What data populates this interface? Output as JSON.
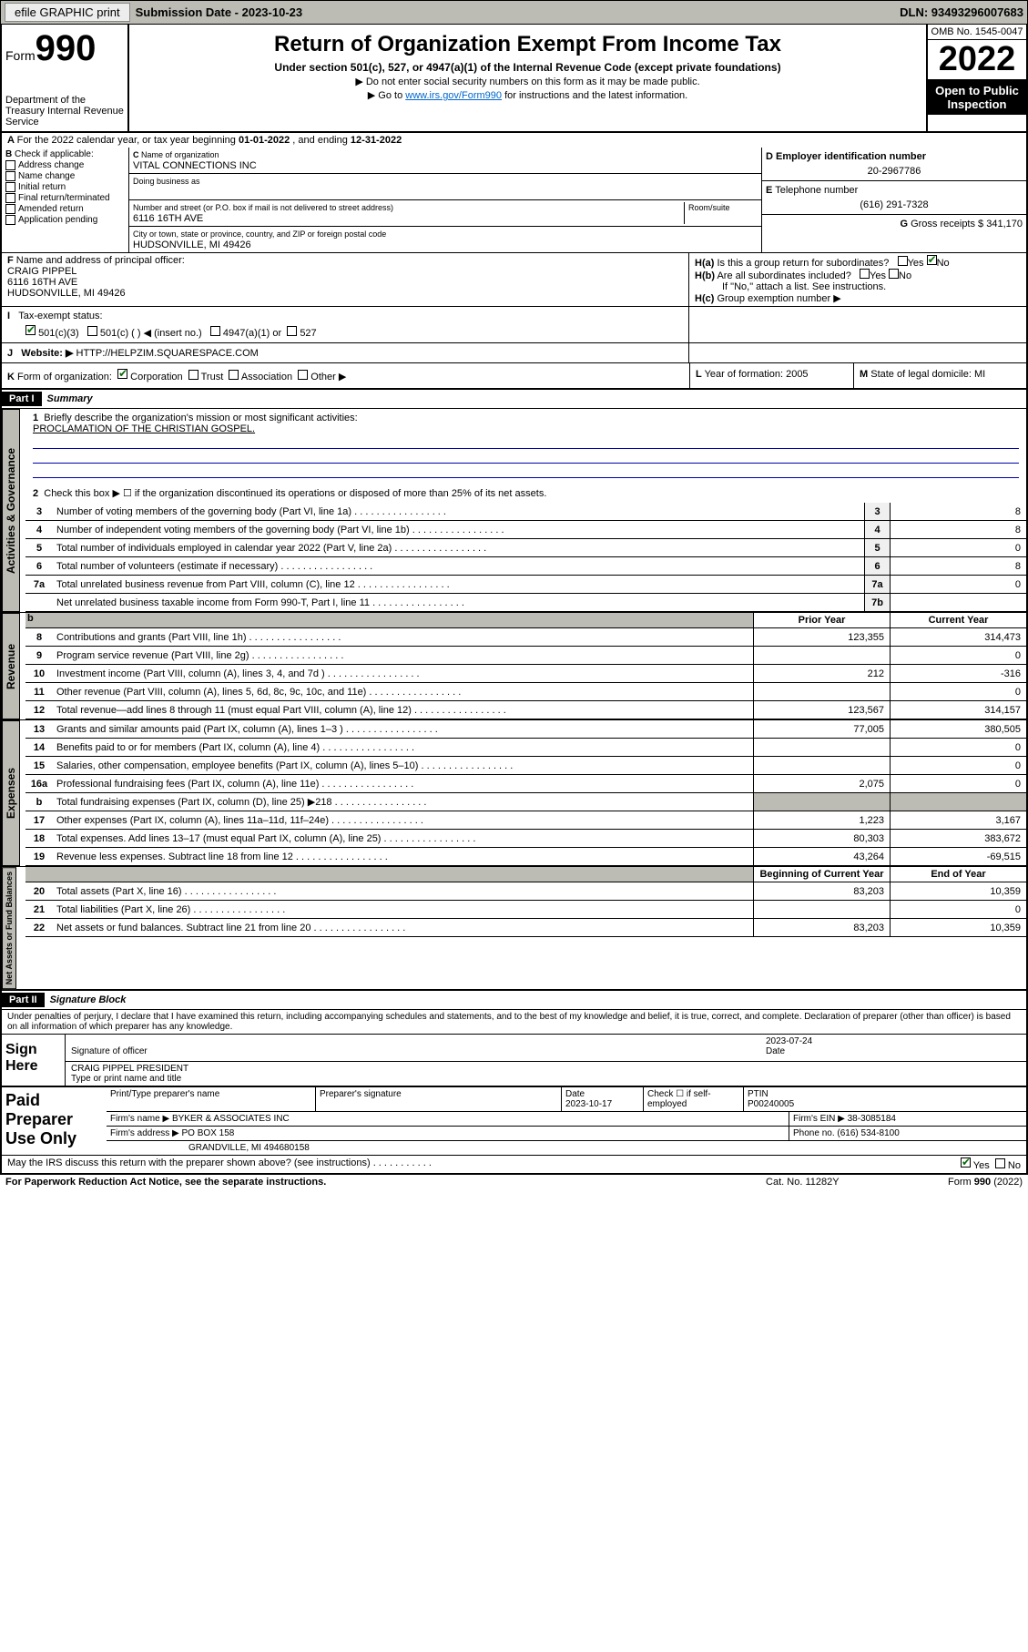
{
  "topbar": {
    "efile": "efile GRAPHIC print",
    "sub_label": "Submission Date - 2023-10-23",
    "dln": "DLN: 93493296007683"
  },
  "header": {
    "form_prefix": "Form",
    "form_num": "990",
    "dept": "Department of the Treasury\nInternal Revenue Service",
    "title": "Return of Organization Exempt From Income Tax",
    "sub": "Under section 501(c), 527, or 4947(a)(1) of the Internal Revenue Code (except private foundations)",
    "note1": "▶ Do not enter social security numbers on this form as it may be made public.",
    "note2_pre": "▶ Go to ",
    "note2_link": "www.irs.gov/Form990",
    "note2_post": " for instructions and the latest information.",
    "omb": "OMB No. 1545-0047",
    "year": "2022",
    "open": "Open to Public Inspection"
  },
  "A": {
    "text_pre": "For the 2022 calendar year, or tax year beginning ",
    "begin": "01-01-2022",
    "mid": " , and ending ",
    "end": "12-31-2022"
  },
  "B": {
    "title": "Check if applicable:",
    "opts": [
      "Address change",
      "Name change",
      "Initial return",
      "Final return/terminated",
      "Amended return",
      "Application pending"
    ]
  },
  "C": {
    "name_label": "Name of organization",
    "name": "VITAL CONNECTIONS INC",
    "dba_label": "Doing business as",
    "dba": "",
    "street_label": "Number and street (or P.O. box if mail is not delivered to street address)",
    "street": "6116 16TH AVE",
    "room_label": "Room/suite",
    "city_label": "City or town, state or province, country, and ZIP or foreign postal code",
    "city": "HUDSONVILLE, MI  49426"
  },
  "D": {
    "label": "Employer identification number",
    "val": "20-2967786"
  },
  "E": {
    "label": "Telephone number",
    "val": "(616) 291-7328"
  },
  "G": {
    "label": "Gross receipts $",
    "val": "341,170"
  },
  "F": {
    "label": "Name and address of principal officer:",
    "name": "CRAIG PIPPEL",
    "addr1": "6116 16TH AVE",
    "addr2": "HUDSONVILLE, MI  49426"
  },
  "H": {
    "a": "Is this a group return for subordinates?",
    "b": "Are all subordinates included?",
    "note": "If \"No,\" attach a list. See instructions.",
    "c": "Group exemption number ▶"
  },
  "I": {
    "label": "Tax-exempt status:",
    "o1": "501(c)(3)",
    "o2": "501(c) (   ) ◀ (insert no.)",
    "o3": "4947(a)(1) or",
    "o4": "527"
  },
  "J": {
    "label": "Website: ▶",
    "val": "HTTP://HELPZIM.SQUARESPACE.COM"
  },
  "K": {
    "label": "Form of organization:",
    "opts": [
      "Corporation",
      "Trust",
      "Association",
      "Other ▶"
    ]
  },
  "L": {
    "label": "Year of formation:",
    "val": "2005"
  },
  "M": {
    "label": "State of legal domicile:",
    "val": "MI"
  },
  "part1": {
    "hdr": "Part I",
    "title": "Summary",
    "l1": "Briefly describe the organization's mission or most significant activities:",
    "mission": "PROCLAMATION OF THE CHRISTIAN GOSPEL.",
    "l2": "Check this box ▶ ☐  if the organization discontinued its operations or disposed of more than 25% of its net assets.",
    "lines_gov": [
      {
        "n": "3",
        "t": "Number of voting members of the governing body (Part VI, line 1a)",
        "b": "3",
        "v": "8"
      },
      {
        "n": "4",
        "t": "Number of independent voting members of the governing body (Part VI, line 1b)",
        "b": "4",
        "v": "8"
      },
      {
        "n": "5",
        "t": "Total number of individuals employed in calendar year 2022 (Part V, line 2a)",
        "b": "5",
        "v": "0"
      },
      {
        "n": "6",
        "t": "Total number of volunteers (estimate if necessary)",
        "b": "6",
        "v": "8"
      },
      {
        "n": "7a",
        "t": "Total unrelated business revenue from Part VIII, column (C), line 12",
        "b": "7a",
        "v": "0"
      },
      {
        "n": "",
        "t": "Net unrelated business taxable income from Form 990-T, Part I, line 11",
        "b": "7b",
        "v": ""
      }
    ],
    "col_prior": "Prior Year",
    "col_curr": "Current Year",
    "rev": [
      {
        "n": "8",
        "t": "Contributions and grants (Part VIII, line 1h)",
        "p": "123,355",
        "c": "314,473"
      },
      {
        "n": "9",
        "t": "Program service revenue (Part VIII, line 2g)",
        "p": "",
        "c": "0"
      },
      {
        "n": "10",
        "t": "Investment income (Part VIII, column (A), lines 3, 4, and 7d )",
        "p": "212",
        "c": "-316"
      },
      {
        "n": "11",
        "t": "Other revenue (Part VIII, column (A), lines 5, 6d, 8c, 9c, 10c, and 11e)",
        "p": "",
        "c": "0"
      },
      {
        "n": "12",
        "t": "Total revenue—add lines 8 through 11 (must equal Part VIII, column (A), line 12)",
        "p": "123,567",
        "c": "314,157"
      }
    ],
    "exp": [
      {
        "n": "13",
        "t": "Grants and similar amounts paid (Part IX, column (A), lines 1–3 )",
        "p": "77,005",
        "c": "380,505"
      },
      {
        "n": "14",
        "t": "Benefits paid to or for members (Part IX, column (A), line 4)",
        "p": "",
        "c": "0"
      },
      {
        "n": "15",
        "t": "Salaries, other compensation, employee benefits (Part IX, column (A), lines 5–10)",
        "p": "",
        "c": "0"
      },
      {
        "n": "16a",
        "t": "Professional fundraising fees (Part IX, column (A), line 11e)",
        "p": "2,075",
        "c": "0"
      },
      {
        "n": "b",
        "t": "Total fundraising expenses (Part IX, column (D), line 25) ▶218",
        "p": "SH",
        "c": "SH"
      },
      {
        "n": "17",
        "t": "Other expenses (Part IX, column (A), lines 11a–11d, 11f–24e)",
        "p": "1,223",
        "c": "3,167"
      },
      {
        "n": "18",
        "t": "Total expenses. Add lines 13–17 (must equal Part IX, column (A), line 25)",
        "p": "80,303",
        "c": "383,672"
      },
      {
        "n": "19",
        "t": "Revenue less expenses. Subtract line 18 from line 12",
        "p": "43,264",
        "c": "-69,515"
      }
    ],
    "col_boy": "Beginning of Current Year",
    "col_eoy": "End of Year",
    "net": [
      {
        "n": "20",
        "t": "Total assets (Part X, line 16)",
        "p": "83,203",
        "c": "10,359"
      },
      {
        "n": "21",
        "t": "Total liabilities (Part X, line 26)",
        "p": "",
        "c": "0"
      },
      {
        "n": "22",
        "t": "Net assets or fund balances. Subtract line 21 from line 20",
        "p": "83,203",
        "c": "10,359"
      }
    ],
    "vert_gov": "Activities & Governance",
    "vert_rev": "Revenue",
    "vert_exp": "Expenses",
    "vert_net": "Net Assets or Fund Balances"
  },
  "part2": {
    "hdr": "Part II",
    "title": "Signature Block",
    "decl": "Under penalties of perjury, I declare that I have examined this return, including accompanying schedules and statements, and to the best of my knowledge and belief, it is true, correct, and complete. Declaration of preparer (other than officer) is based on all information of which preparer has any knowledge."
  },
  "sign": {
    "label": "Sign Here",
    "sig_of": "Signature of officer",
    "date": "2023-07-24",
    "name": "CRAIG PIPPEL PRESIDENT",
    "name_label": "Type or print name and title"
  },
  "paid": {
    "label": "Paid Preparer Use Only",
    "h1": "Print/Type preparer's name",
    "h2": "Preparer's signature",
    "h3": "Date",
    "date": "2023-10-17",
    "h4": "Check ☐ if self-employed",
    "h5": "PTIN",
    "ptin": "P00240005",
    "firm_label": "Firm's name   ▶",
    "firm": "BYKER & ASSOCIATES INC",
    "ein_label": "Firm's EIN ▶",
    "ein": "38-3085184",
    "addr_label": "Firm's address ▶",
    "addr1": "PO BOX 158",
    "addr2": "GRANDVILLE, MI  494680158",
    "phone_label": "Phone no.",
    "phone": "(616) 534-8100"
  },
  "footer": {
    "q": "May the IRS discuss this return with the preparer shown above? (see instructions)",
    "notice": "For Paperwork Reduction Act Notice, see the separate instructions.",
    "cat": "Cat. No. 11282Y",
    "form": "Form 990 (2022)"
  },
  "style": {
    "bg_shade": "#bcbcb4",
    "link_color": "#0066cc",
    "check_color": "#0a6e0a"
  }
}
